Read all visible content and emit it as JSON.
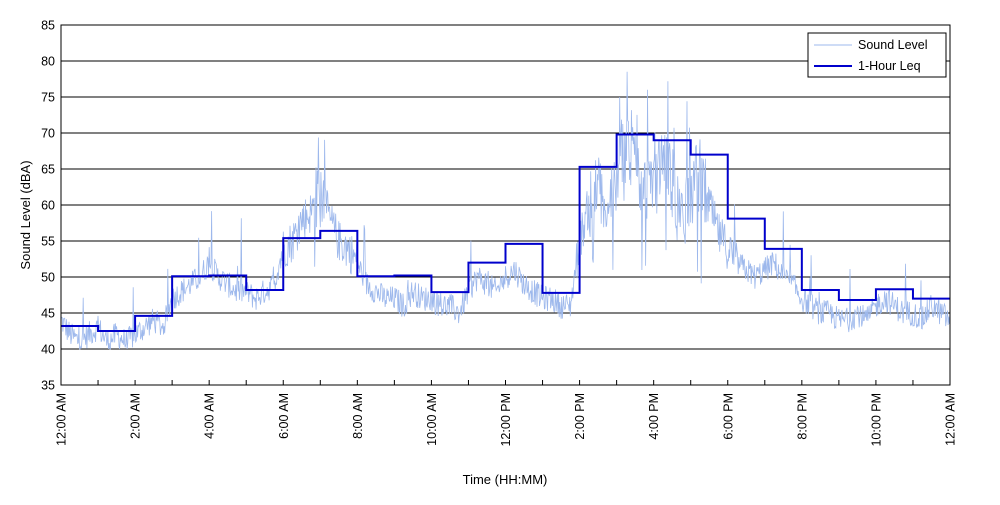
{
  "chart_data": {
    "type": "line",
    "title": "",
    "xlabel": "Time (HH:MM)",
    "ylabel": "Sound Level (dBA)",
    "xlim": [
      0,
      24
    ],
    "ylim": [
      35,
      85
    ],
    "yticks": [
      35,
      40,
      45,
      50,
      55,
      60,
      65,
      70,
      75,
      80,
      85
    ],
    "xtick_labels": [
      "12:00 AM",
      "2:00 AM",
      "4:00 AM",
      "6:00 AM",
      "8:00 AM",
      "10:00 AM",
      "12:00 PM",
      "2:00 PM",
      "4:00 PM",
      "6:00 PM",
      "8:00 PM",
      "10:00 PM",
      "12:00 AM"
    ],
    "grid": "horizontal",
    "legend_position": "top-right",
    "series": [
      {
        "name": "Sound Level",
        "color": "#9db8ec",
        "style": "thin-noisy",
        "x": [
          0,
          0.25,
          0.5,
          0.75,
          1.0,
          1.25,
          1.5,
          1.75,
          2.0,
          2.25,
          2.5,
          2.75,
          3.0,
          3.25,
          3.5,
          3.75,
          4.0,
          4.25,
          4.5,
          4.75,
          5.0,
          5.25,
          5.5,
          5.75,
          6.0,
          6.25,
          6.5,
          6.75,
          7.0,
          7.25,
          7.5,
          7.75,
          8.0,
          8.25,
          8.5,
          8.75,
          9.0,
          9.25,
          9.5,
          9.75,
          10.0,
          10.25,
          10.5,
          10.75,
          11.0,
          11.25,
          11.5,
          11.75,
          12.0,
          12.25,
          12.5,
          12.75,
          13.0,
          13.25,
          13.5,
          13.75,
          14.0,
          14.25,
          14.5,
          14.75,
          15.0,
          15.25,
          15.5,
          15.75,
          16.0,
          16.25,
          16.5,
          16.75,
          17.0,
          17.25,
          17.5,
          17.75,
          18.0,
          18.25,
          18.5,
          18.75,
          19.0,
          19.25,
          19.5,
          19.75,
          20.0,
          20.25,
          20.5,
          20.75,
          21.0,
          21.25,
          21.5,
          21.75,
          22.0,
          22.25,
          22.5,
          22.75,
          23.0,
          23.25,
          23.5,
          23.75,
          24.0
        ],
        "values": [
          44,
          42,
          41,
          42,
          43,
          41,
          42,
          41,
          42,
          43,
          44,
          43,
          47,
          48,
          49,
          50,
          52,
          50,
          49,
          48,
          48,
          47,
          48,
          49,
          54,
          55,
          58,
          59,
          62,
          58,
          55,
          54,
          52,
          49,
          48,
          47,
          47,
          46,
          48,
          47,
          47,
          46,
          46,
          45,
          48,
          50,
          49,
          48,
          50,
          51,
          49,
          48,
          47,
          47,
          46,
          46,
          55,
          60,
          62,
          58,
          65,
          68,
          66,
          62,
          65,
          67,
          63,
          60,
          62,
          64,
          60,
          56,
          54,
          52,
          51,
          50,
          51,
          52,
          50,
          49,
          47,
          46,
          45,
          45,
          44,
          44,
          45,
          44,
          46,
          47,
          46,
          45,
          45,
          44,
          46,
          45,
          44
        ]
      },
      {
        "name": "1-Hour Leq",
        "color": "#0000cc",
        "style": "step",
        "hour_values": [
          43.2,
          42.5,
          44.6,
          50.1,
          50.2,
          48.2,
          55.4,
          56.4,
          50.1,
          50.2,
          47.9,
          52.0,
          54.6,
          47.8,
          65.3,
          69.8,
          69.0,
          67.0,
          58.1,
          53.9,
          48.2,
          46.8,
          48.3,
          47.0
        ]
      }
    ]
  }
}
